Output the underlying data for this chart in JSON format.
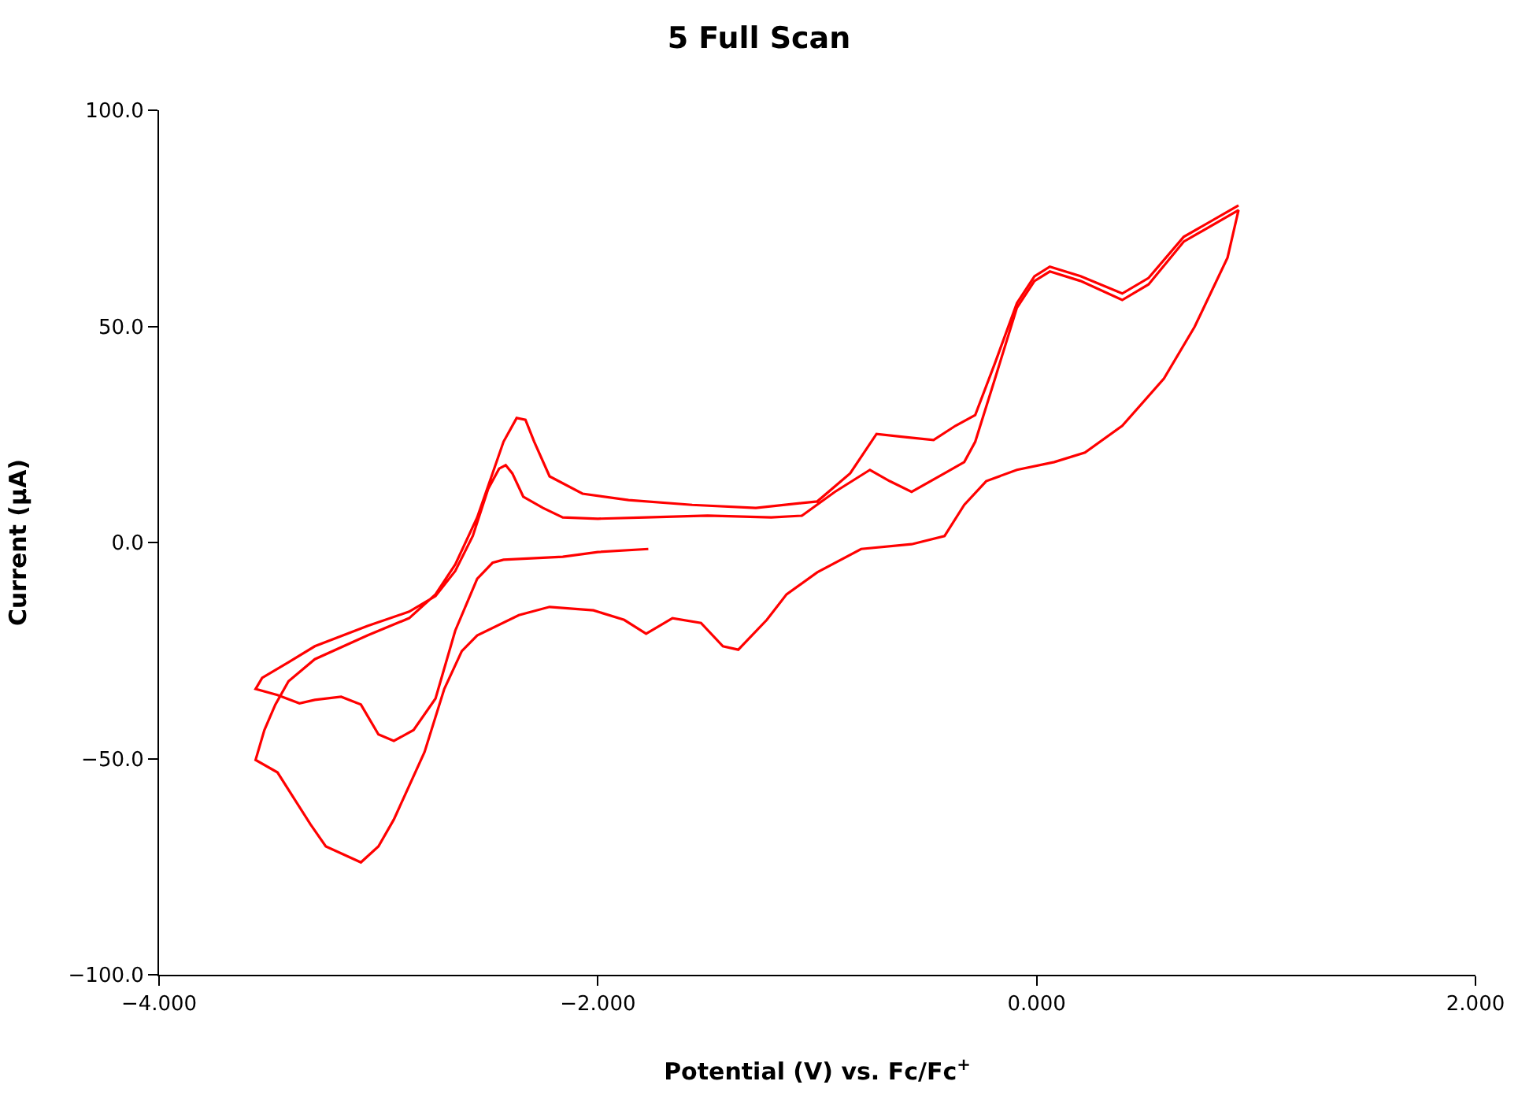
{
  "chart_data": {
    "type": "line",
    "title": "5 Full Scan",
    "xlabel": "Potential (V) vs. Fc/Fc$^{+}$",
    "ylabel": "Current (μA)",
    "xlim": [
      -4,
      2
    ],
    "ylim": [
      -100,
      100
    ],
    "xticks": [
      {
        "value": -4,
        "label": "−4.000"
      },
      {
        "value": -2,
        "label": "−2.000"
      },
      {
        "value": 0,
        "label": "0.000"
      },
      {
        "value": 2,
        "label": "2.000"
      }
    ],
    "yticks": [
      {
        "value": -100,
        "label": "−100.0"
      },
      {
        "value": -50,
        "label": "−50.0"
      },
      {
        "value": 0,
        "label": "0.0"
      },
      {
        "value": 50,
        "label": "50.0"
      },
      {
        "value": 100,
        "label": "100.0"
      }
    ],
    "series": [
      {
        "color": "#ff0000",
        "x": [
          -1.77,
          -2.0,
          -2.16,
          -2.43,
          -2.48,
          -2.55,
          -2.65,
          -2.74,
          -2.84,
          -2.93,
          -3.0,
          -3.08,
          -3.17,
          -3.29,
          -3.36,
          -3.46,
          -3.56,
          -3.53,
          -3.41,
          -3.29,
          -3.05,
          -2.86,
          -2.74,
          -2.65,
          -2.57,
          -2.5,
          -2.45,
          -2.42,
          -2.39,
          -2.34,
          -2.25,
          -2.16,
          -2.0,
          -1.78,
          -1.5,
          -1.21,
          -1.07,
          -0.92,
          -0.76,
          -0.67,
          -0.57,
          -0.42,
          -0.33,
          -0.28,
          -0.19,
          -0.09,
          -0.01,
          0.06,
          0.2,
          0.39,
          0.51,
          0.67,
          0.92,
          0.87,
          0.72,
          0.58,
          0.39,
          0.22,
          0.08,
          -0.09,
          -0.23,
          -0.33,
          -0.42,
          -0.57,
          -0.8,
          -1.0,
          -1.14,
          -1.23,
          -1.36,
          -1.43,
          -1.53,
          -1.66,
          -1.78,
          -1.88,
          -2.02,
          -2.22,
          -2.36,
          -2.55,
          -2.62,
          -2.7,
          -2.79,
          -2.93,
          -3.0,
          -3.08,
          -3.24,
          -3.31,
          -3.46,
          -3.56,
          -3.52,
          -3.47,
          -3.41,
          -3.29,
          -3.05,
          -2.86,
          -2.74,
          -2.65,
          -2.55,
          -2.48,
          -2.43,
          -2.37,
          -2.33,
          -2.29,
          -2.22,
          -2.07,
          -1.86,
          -1.57,
          -1.28,
          -1.0,
          -0.85,
          -0.73,
          -0.6,
          -0.47,
          -0.37,
          -0.28,
          -0.19,
          -0.09,
          -0.01,
          0.06,
          0.2,
          0.39,
          0.51,
          0.67,
          0.92
        ],
        "values": [
          -1.5,
          -2.2,
          -3.3,
          -4.0,
          -4.7,
          -8.4,
          -20.4,
          -36.1,
          -43.4,
          -45.9,
          -44.4,
          -37.5,
          -35.7,
          -36.4,
          -37.2,
          -35.3,
          -33.9,
          -31.3,
          -27.7,
          -24.0,
          -19.3,
          -16.0,
          -12.4,
          -6.6,
          1.5,
          12.4,
          17.1,
          17.9,
          16.0,
          10.6,
          8.0,
          5.8,
          5.5,
          5.8,
          6.2,
          5.8,
          6.2,
          11.7,
          16.8,
          14.2,
          11.7,
          16.0,
          18.6,
          23.3,
          37.9,
          54.3,
          60.5,
          62.7,
          60.5,
          56.1,
          59.7,
          69.6,
          76.9,
          65.9,
          49.9,
          37.9,
          27.0,
          20.8,
          18.6,
          16.8,
          14.2,
          8.7,
          1.5,
          -0.4,
          -1.5,
          -6.9,
          -12.0,
          -17.9,
          -24.8,
          -24.0,
          -18.6,
          -17.5,
          -21.1,
          -17.9,
          -15.7,
          -14.9,
          -16.8,
          -21.5,
          -25.1,
          -33.9,
          -48.5,
          -64.1,
          -70.3,
          -74.0,
          -70.3,
          -65.2,
          -53.2,
          -50.3,
          -43.4,
          -37.5,
          -32.1,
          -27.0,
          -21.5,
          -17.5,
          -12.0,
          -5.1,
          5.8,
          16.0,
          23.3,
          28.8,
          28.4,
          23.3,
          15.3,
          11.3,
          9.8,
          8.7,
          8.0,
          9.5,
          16.0,
          25.1,
          24.4,
          23.7,
          27.0,
          29.5,
          41.5,
          55.4,
          61.6,
          63.8,
          61.6,
          57.6,
          61.2,
          70.7,
          78.0
        ]
      }
    ]
  }
}
